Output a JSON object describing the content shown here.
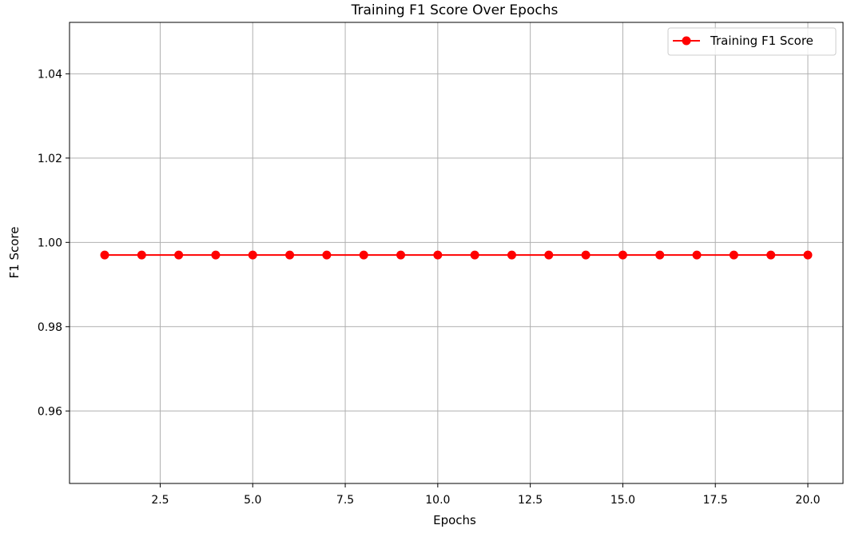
{
  "chart_data": {
    "type": "line",
    "title": "Training F1 Score Over Epochs",
    "xlabel": "Epochs",
    "ylabel": "F1 Score",
    "x": [
      1,
      2,
      3,
      4,
      5,
      6,
      7,
      8,
      9,
      10,
      11,
      12,
      13,
      14,
      15,
      16,
      17,
      18,
      19,
      20
    ],
    "series": [
      {
        "name": "Training F1 Score",
        "color": "#ff0000",
        "marker": "circle",
        "values": [
          0.997,
          0.997,
          0.997,
          0.997,
          0.997,
          0.997,
          0.997,
          0.997,
          0.997,
          0.997,
          0.997,
          0.997,
          0.997,
          0.997,
          0.997,
          0.997,
          0.997,
          0.997,
          0.997,
          0.997
        ]
      }
    ],
    "xlim": [
      0.05,
      20.95
    ],
    "ylim": [
      0.9428,
      1.0522
    ],
    "x_ticks": [
      2.5,
      5.0,
      7.5,
      10.0,
      12.5,
      15.0,
      17.5,
      20.0
    ],
    "x_tick_labels": [
      "2.5",
      "5.0",
      "7.5",
      "10.0",
      "12.5",
      "15.0",
      "17.5",
      "20.0"
    ],
    "y_ticks": [
      0.96,
      0.98,
      1.0,
      1.02,
      1.04
    ],
    "y_tick_labels": [
      "0.96",
      "0.98",
      "1.00",
      "1.02",
      "1.04"
    ],
    "grid": true,
    "legend_position": "top-right"
  }
}
